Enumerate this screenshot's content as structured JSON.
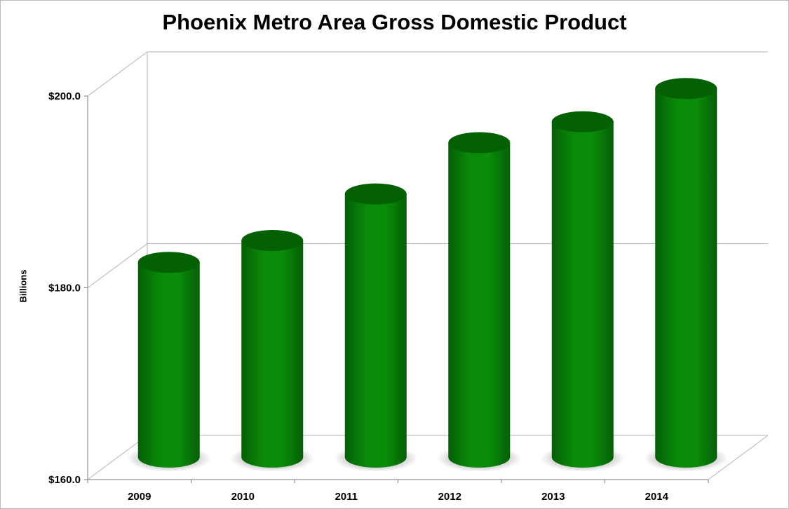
{
  "chart_data": {
    "type": "bar",
    "style": "3d-cylinder",
    "title": "Phoenix Metro Area Gross Domestic Product",
    "xlabel": "",
    "ylabel": "Billions",
    "categories": [
      "2009",
      "2010",
      "2011",
      "2012",
      "2013",
      "2014"
    ],
    "series": [
      {
        "values": [
          180.5,
          182.8,
          187.7,
          193.1,
          195.3,
          198.8
        ]
      }
    ],
    "ylim": [
      160,
      200
    ],
    "yticks": [
      "$160.0",
      "$180.0",
      "$200.0"
    ],
    "ytick_values": [
      160,
      180,
      200
    ],
    "grid": true,
    "legend": "none",
    "colors": {
      "bar": "#0a8a0a",
      "bar_dark": "#045f04",
      "bar_light": "#22aa22",
      "top": "#036003",
      "grid": "#b4b4b4"
    }
  }
}
